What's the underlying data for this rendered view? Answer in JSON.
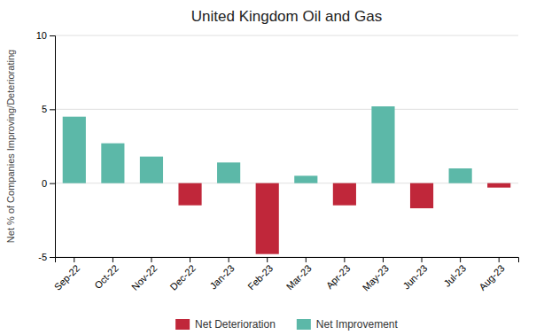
{
  "chart_data": {
    "type": "bar",
    "title": "United Kingdom Oil and Gas",
    "ylabel": "Net % of Companies Improving/Deteriorating",
    "categories": [
      "Sep-22",
      "Oct-22",
      "Nov-22",
      "Dec-22",
      "Jan-23",
      "Feb-23",
      "Mar-23",
      "Apr-23",
      "May-23",
      "Jun-23",
      "Jul-23",
      "Aug-23"
    ],
    "values": [
      4.5,
      2.7,
      1.8,
      -1.5,
      1.4,
      -4.8,
      0.5,
      -1.5,
      5.2,
      -1.7,
      1.0,
      -0.3
    ],
    "colors": [
      "#5cb8a8",
      "#5cb8a8",
      "#5cb8a8",
      "#c0273a",
      "#5cb8a8",
      "#c0273a",
      "#5cb8a8",
      "#c0273a",
      "#5cb8a8",
      "#c0273a",
      "#5cb8a8",
      "#c0273a"
    ],
    "legend_entries": [
      {
        "name": "Net Deterioration",
        "color": "#c0273a"
      },
      {
        "name": "Net Improvement",
        "color": "#5cb8a8"
      }
    ],
    "legend": "bottom",
    "ylim": [
      -5,
      10
    ],
    "yticks": [
      -5,
      0,
      5,
      10
    ],
    "grid": true
  }
}
